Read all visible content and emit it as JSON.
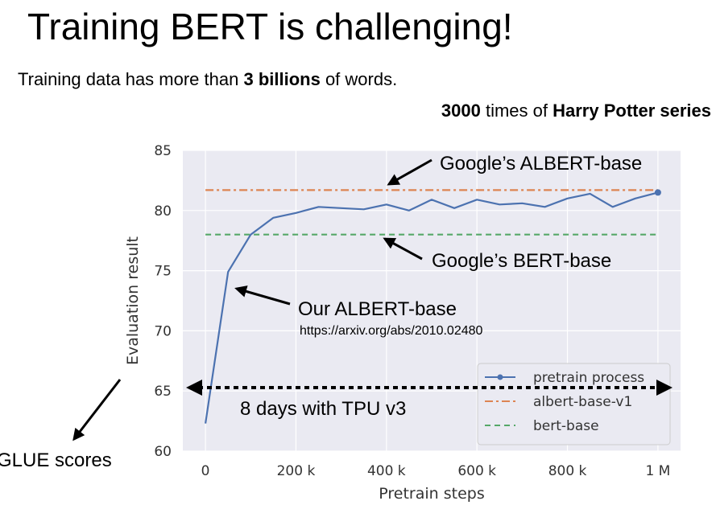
{
  "slide": {
    "title": "Training BERT is challenging!",
    "line1": {
      "prefix": "Training data has more than ",
      "bold": "3 billions",
      "suffix": " of words."
    },
    "line2": {
      "bold1": "3000",
      "middle": " times of ",
      "bold2": "Harry Potter series"
    }
  },
  "chart_data": {
    "type": "line",
    "xlabel": "Pretrain steps",
    "ylabel": "Evaluation result",
    "xlim": [
      -50000,
      1050000
    ],
    "ylim": [
      60,
      85
    ],
    "xticks": [
      0,
      200000,
      400000,
      600000,
      800000,
      1000000
    ],
    "xtick_labels": [
      "0",
      "200 k",
      "400 k",
      "600 k",
      "800 k",
      "1 M"
    ],
    "yticks": [
      60,
      65,
      70,
      75,
      80,
      85
    ],
    "ytick_labels": [
      "60",
      "65",
      "70",
      "75",
      "80",
      "85"
    ],
    "grid": true,
    "legend_position": "lower-right",
    "series": [
      {
        "name": "pretrain process",
        "style": "solid",
        "color": "#4c72b0",
        "x": [
          0,
          50000,
          100000,
          150000,
          200000,
          250000,
          300000,
          350000,
          400000,
          450000,
          500000,
          550000,
          600000,
          650000,
          700000,
          750000,
          800000,
          850000,
          900000,
          950000,
          1000000
        ],
        "y": [
          62.3,
          74.9,
          78.0,
          79.4,
          79.8,
          80.3,
          80.2,
          80.1,
          80.5,
          80.0,
          80.9,
          80.2,
          80.9,
          80.5,
          80.6,
          80.3,
          81.0,
          81.4,
          80.3,
          81.0,
          81.5
        ],
        "last_point_marker": true
      },
      {
        "name": "albert-base-v1",
        "style": "dashdot",
        "color": "#dd8452",
        "x": [
          0,
          1000000
        ],
        "y": [
          81.7,
          81.7
        ]
      },
      {
        "name": "bert-base",
        "style": "dashed",
        "color": "#55a868",
        "x": [
          0,
          1000000
        ],
        "y": [
          78.0,
          78.0
        ]
      }
    ],
    "annotations": {
      "google_albert": "Google’s ALBERT-base",
      "google_bert": "Google’s BERT-base",
      "our_albert": "Our ALBERT-base",
      "url": "https://arxiv.org/abs/2010.02480",
      "duration": "8 days with TPU v3",
      "glue": "GLUE scores"
    }
  }
}
